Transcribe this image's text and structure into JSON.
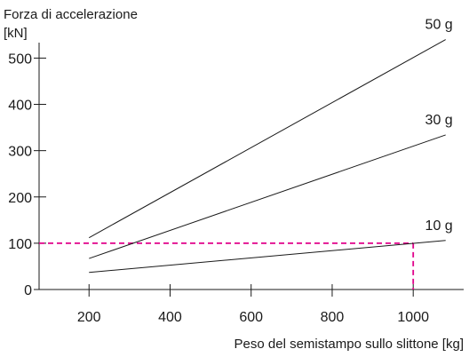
{
  "chart_data": {
    "type": "line",
    "title": "",
    "ylabel": "Forza di accelerazione",
    "ylabel_unit": "[kN]",
    "xlabel": "Peso del semistampo sullo slittone [kg]",
    "xlim": [
      0,
      1130
    ],
    "ylim": [
      0,
      500
    ],
    "xticks": [
      200,
      400,
      600,
      800,
      1000
    ],
    "xtick_labels": [
      "200",
      "400",
      "600",
      "800",
      "1000"
    ],
    "yticks": [
      0,
      100,
      200,
      300,
      400,
      500
    ],
    "ytick_labels": [
      "0",
      "100",
      "200",
      "300",
      "400",
      "500"
    ],
    "grid": false,
    "series": [
      {
        "name": "50 g",
        "x": [
          200,
          1080
        ],
        "y": [
          112,
          540
        ]
      },
      {
        "name": "30 g",
        "x": [
          200,
          1080
        ],
        "y": [
          67,
          334
        ]
      },
      {
        "name": "10 g",
        "x": [
          200,
          1080
        ],
        "y": [
          37,
          106
        ]
      }
    ],
    "reference_line": {
      "x": 1000,
      "y": 100,
      "color": "#e0008a",
      "style": "dashed"
    },
    "colors": {
      "series": "#1a1a1a",
      "reference": "#e0008a",
      "axis": "#1a1a1a"
    }
  }
}
